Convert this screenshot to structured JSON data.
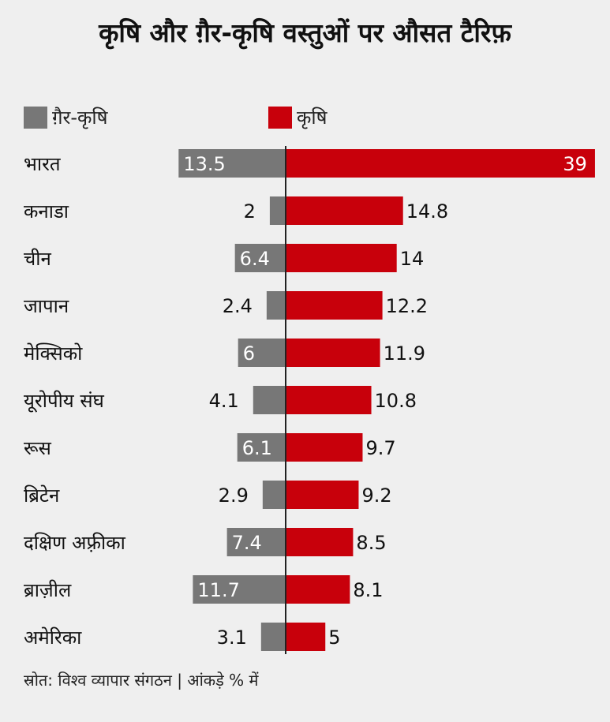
{
  "chart_data": {
    "type": "bar",
    "title": "कृषि और ग़ैर-कृषि वस्तुओं पर औसत टैरिफ़",
    "categories": [
      "भारत",
      "कनाडा",
      "चीन",
      "जापान",
      "मेक्सिको",
      "यूरोपीय संघ",
      "रूस",
      "ब्रिटेन",
      "दक्षिण अफ़्रीका",
      "ब्राज़ील",
      "अमेरिका"
    ],
    "series": [
      {
        "name": "ग़ैर-कृषि",
        "color": "#777777",
        "values": [
          13.5,
          2,
          6.4,
          2.4,
          6,
          4.1,
          6.1,
          2.9,
          7.4,
          11.7,
          3.1
        ],
        "value_labels": [
          "13.5",
          "2",
          "6.4",
          "2.4",
          "6",
          "4.1",
          "6.1",
          "2.9",
          "7.4",
          "11.7",
          "3.1"
        ]
      },
      {
        "name": "कृषि",
        "color": "#c8000b",
        "values": [
          39,
          14.8,
          14,
          12.2,
          11.9,
          10.8,
          9.7,
          9.2,
          8.5,
          8.1,
          5
        ],
        "value_labels": [
          "39",
          "14.8",
          "14",
          "12.2",
          "11.9",
          "10.8",
          "9.7",
          "9.2",
          "8.5",
          "8.1",
          "5"
        ]
      }
    ],
    "legend": "top",
    "grid": false,
    "source": "स्रोत: विश्व व्यापार संगठन | आंकड़े % में"
  }
}
